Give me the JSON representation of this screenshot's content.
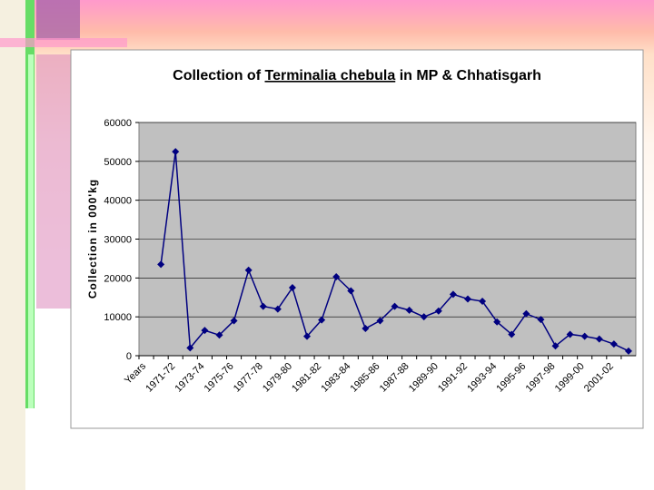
{
  "chart_data": {
    "type": "line",
    "title": {
      "lead": "Collection of",
      "emphasis": "Terminalia chebula",
      "tail": "in MP & Chhatisgarh"
    },
    "y_label": "Collection in 000'kg",
    "categories": [
      "Years",
      null,
      "1971-72",
      null,
      "1973-74",
      null,
      "1975-76",
      null,
      "1977-78",
      null,
      "1979-80",
      null,
      "1981-82",
      null,
      "1983-84",
      null,
      "1985-86",
      null,
      "1987-88",
      null,
      "1989-90",
      null,
      "1991-92",
      null,
      "1993-94",
      null,
      "1995-96",
      null,
      "1997-98",
      null,
      "1999-00",
      null,
      "2001-02",
      null
    ],
    "series": [
      {
        "color": "#000080",
        "values": [
          null,
          23500,
          52500,
          2000,
          6500,
          5300,
          9000,
          22000,
          12700,
          12000,
          17500,
          5000,
          9200,
          20300,
          16700,
          7000,
          9000,
          12700,
          11700,
          10000,
          11500,
          15800,
          14600,
          14000,
          8700,
          5500,
          10800,
          9300,
          2500,
          5500,
          5000,
          4300,
          3000,
          1200
        ]
      }
    ],
    "ylim": [
      0,
      60000
    ],
    "yticks": [
      0,
      10000,
      20000,
      30000,
      40000,
      50000,
      60000
    ],
    "grid": true
  }
}
